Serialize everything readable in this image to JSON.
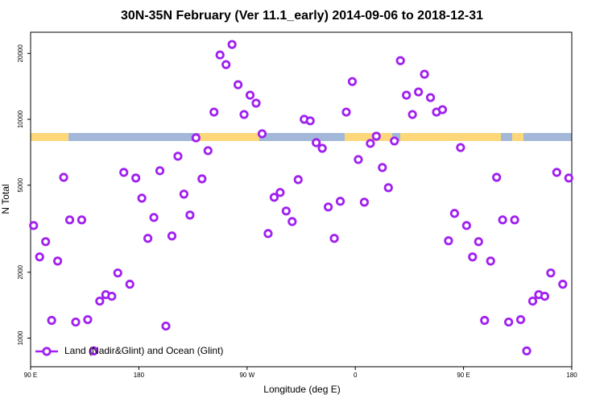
{
  "chart_data": {
    "type": "scatter",
    "title": "30N-35N February (Ver 11.1_early)   2014-09-06 to 2018-12-31",
    "x_label": "Longitude (deg E)",
    "y_label": "N Total",
    "log_y": true,
    "legend_position": "lower left",
    "xlim": [
      90,
      540
    ],
    "ylim": [
      740,
      25000
    ],
    "xticks": [
      {
        "value": 90,
        "label": "90 E"
      },
      180,
      {
        "value": 270,
        "label": "90 W"
      },
      {
        "value": 360,
        "label": "0"
      },
      {
        "value": 450,
        "label": "90 E"
      },
      {
        "value": 540,
        "label": "180"
      }
    ],
    "yticks": [
      1000,
      2000,
      5000,
      10000,
      20000
    ],
    "series": [
      {
        "name": "Land (Nadir&Glint) and Ocean (Glint)",
        "color": "#a020f0",
        "x": [
          92.5,
          97.5,
          102.5,
          107.5,
          112.5,
          117.5,
          122.5,
          127.5,
          132.5,
          137.5,
          142.5,
          147.5,
          152.5,
          157.5,
          162.5,
          167.5,
          172.5,
          177.5,
          182.5,
          187.5,
          192.5,
          197.5,
          202.5,
          207.5,
          212.5,
          217.5,
          222.5,
          227.5,
          232.5,
          237.5,
          242.5,
          247.5,
          252.5,
          257.5,
          262.5,
          267.5,
          272.5,
          277.5,
          282.5,
          287.5,
          292.5,
          297.5,
          302.5,
          307.5,
          312.5,
          317.5,
          322.5,
          327.5,
          332.5,
          337.5,
          342.5,
          347.5,
          352.5,
          357.5,
          362.5,
          367.5,
          372.5,
          377.5,
          382.5,
          387.5,
          392.5,
          397.5,
          402.5,
          407.5,
          412.5,
          417.5,
          422.5,
          427.5,
          432.5,
          437.5,
          442.5,
          447.5,
          452.5,
          457.5,
          462.5,
          467.5,
          472.5,
          477.5,
          482.5,
          487.5,
          492.5,
          497.5,
          502.5,
          507.5,
          512.5,
          517.5,
          522.5,
          527.5,
          532.5,
          537.5
        ],
        "values": [
          3270,
          2350,
          2760,
          1205,
          2250,
          5430,
          3470,
          1184,
          3470,
          1215,
          874,
          1476,
          1580,
          1553,
          1985,
          5720,
          1763,
          5390,
          4360,
          2857,
          3560,
          5820,
          1135,
          2930,
          6780,
          4550,
          3650,
          8230,
          5345,
          7190,
          10790,
          19680,
          17780,
          21980,
          14390,
          10520,
          12890,
          11850,
          8590,
          3005,
          4400,
          4630,
          3810,
          3410,
          5300,
          10000,
          9840,
          7820,
          7370,
          3975,
          2857,
          4220,
          10790,
          14880,
          6550,
          4180,
          7760,
          8370,
          6020,
          4870,
          7960,
          18540,
          12890,
          10520,
          13340,
          16070,
          12570,
          10790,
          11070,
          2785,
          3715,
          7430,
          3270,
          2350,
          2760,
          1205,
          2250,
          5430,
          3470,
          1184,
          3470,
          1215,
          874,
          1476,
          1580,
          1553,
          1985,
          5720,
          1763,
          5390
        ]
      }
    ]
  }
}
